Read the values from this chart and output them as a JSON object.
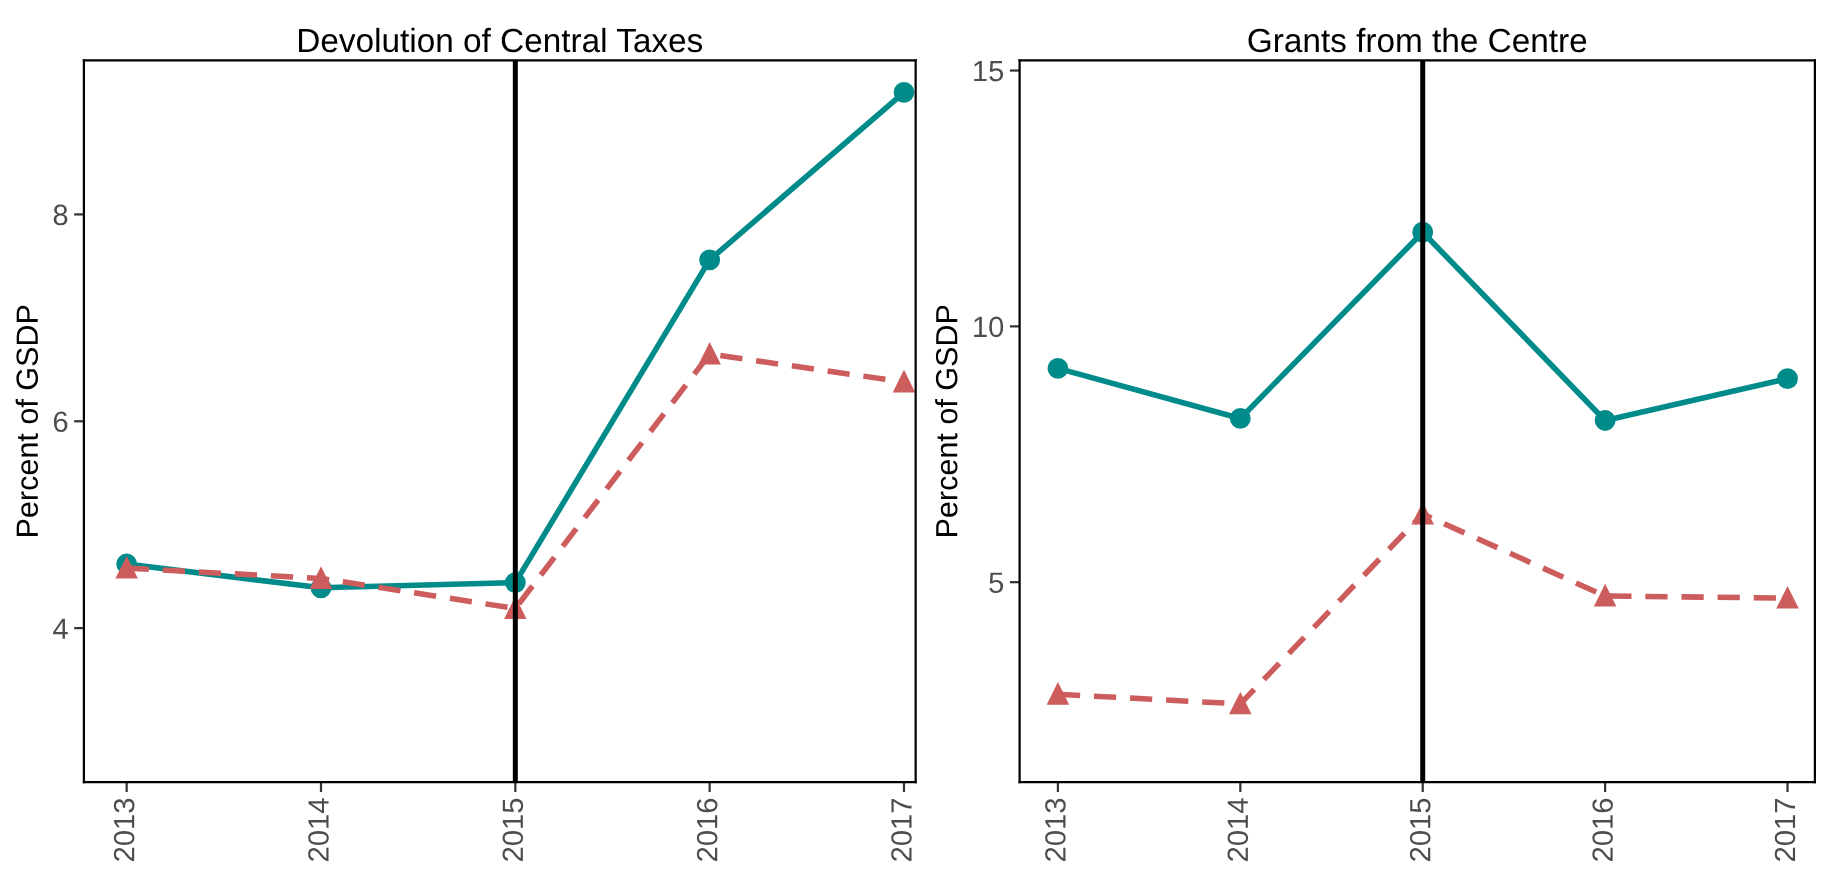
{
  "chart_data": [
    {
      "type": "line",
      "title": "Devolution of Central Taxes",
      "ylabel": "Percent of GSDP",
      "x": [
        2013,
        2014,
        2015,
        2016,
        2017
      ],
      "xlim": [
        2012.78,
        2017.06
      ],
      "xticks": [
        2013,
        2014,
        2015,
        2016,
        2017
      ],
      "ylim": [
        2.51,
        9.49
      ],
      "yticks": [
        4,
        6,
        8
      ],
      "grid": false,
      "series": [
        {
          "color": "#008b8b",
          "marker": "circle",
          "line_style": "solid",
          "values": [
            4.62,
            4.39,
            4.44,
            7.56,
            9.18
          ]
        },
        {
          "color": "#cd5c5c",
          "marker": "triangle",
          "line_style": "dashed",
          "values": [
            4.58,
            4.48,
            4.19,
            6.65,
            6.38
          ]
        }
      ],
      "ref_lines": [
        {
          "axis": "x",
          "value": 2015,
          "color": "#000000"
        }
      ]
    },
    {
      "type": "line",
      "title": "Grants from the Centre",
      "ylabel": "Percent of GSDP",
      "x": [
        2013,
        2014,
        2015,
        2016,
        2017
      ],
      "xlim": [
        2012.79,
        2017.15
      ],
      "xticks": [
        2013,
        2014,
        2015,
        2016,
        2017
      ],
      "ylim": [
        1.09,
        15.2
      ],
      "yticks": [
        5,
        10,
        15
      ],
      "grid": false,
      "series": [
        {
          "color": "#008b8b",
          "marker": "circle",
          "line_style": "solid",
          "values": [
            9.18,
            8.2,
            11.84,
            8.16,
            8.98
          ]
        },
        {
          "color": "#cd5c5c",
          "marker": "triangle",
          "line_style": "dashed",
          "values": [
            2.81,
            2.62,
            6.33,
            4.73,
            4.69
          ]
        }
      ],
      "ref_lines": [
        {
          "axis": "x",
          "value": 2015,
          "color": "#000000"
        }
      ]
    }
  ]
}
